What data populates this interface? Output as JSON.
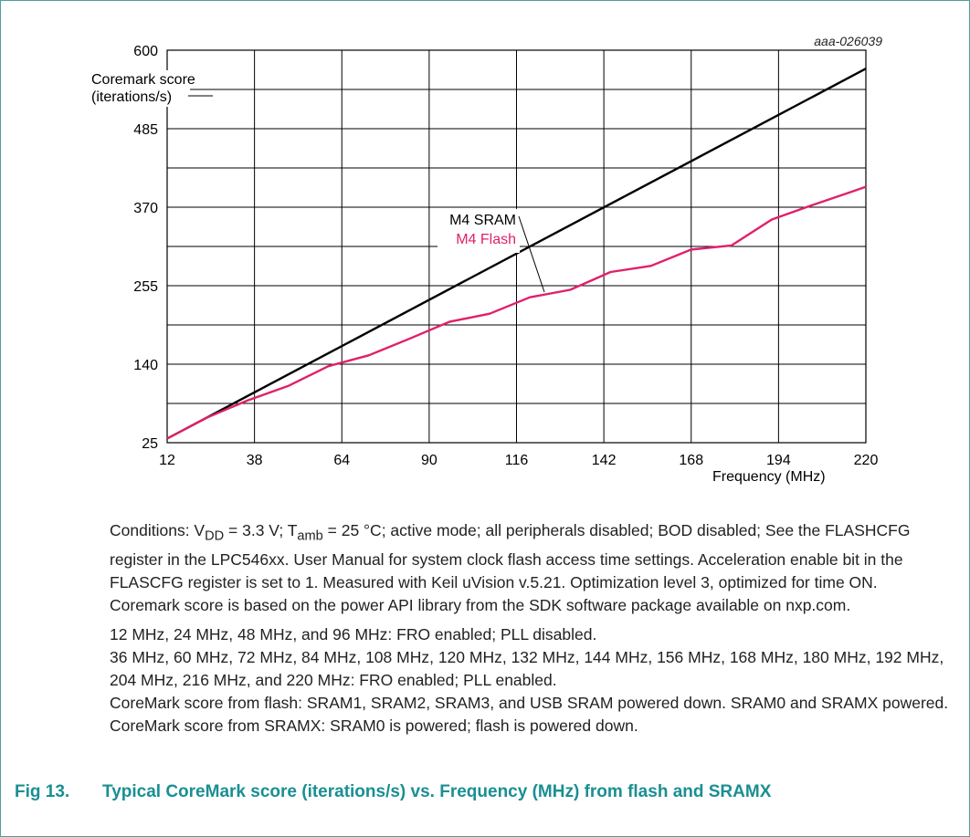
{
  "colors": {
    "frame": "#4d9e9e",
    "sram": "#000000",
    "flash": "#e0206a",
    "caption": "#1a8f93"
  },
  "chart_data": {
    "type": "line",
    "figure_id": "aaa-026039",
    "ylabel_line1": "Coremark score",
    "ylabel_line2": "(iterations/s)",
    "xlabel": "Frequency (MHz)",
    "xlim": [
      12,
      220
    ],
    "ylim": [
      25,
      600
    ],
    "x_ticks": [
      12,
      38,
      64,
      90,
      116,
      142,
      168,
      194,
      220
    ],
    "y_ticks": [
      25,
      140,
      255,
      370,
      485,
      600
    ],
    "grid": true,
    "series": [
      {
        "name": "M4 SRAM",
        "color": "#000000",
        "x": [
          12,
          220
        ],
        "y": [
          31,
          573
        ]
      },
      {
        "name": "M4 Flash",
        "color": "#e0206a",
        "x": [
          12,
          24,
          36,
          48,
          60,
          72,
          84,
          96,
          108,
          120,
          132,
          144,
          156,
          168,
          180,
          192,
          204,
          216,
          220
        ],
        "y": [
          31,
          62,
          87,
          108,
          137,
          153,
          177,
          202,
          214,
          238,
          249,
          275,
          284,
          308,
          314,
          352,
          373,
          393,
          400
        ]
      }
    ]
  },
  "notes": {
    "conditions_part1": "Conditions: V",
    "vdd_sub": "DD",
    "conditions_part2": " = 3.3 V; T",
    "tamb_sub": "amb",
    "conditions_part3": " = 25 °C; active mode; all peripherals disabled; BOD disabled; See the FLASHCFG register in the LPC546xx. User Manual for system clock flash access time settings. Acceleration enable bit in the FLASCFG register is set to 1. Measured with Keil uVision v.5.21. Optimization level 3, optimized for time ON. Coremark score is based on the power API library from the SDK software package available on nxp.com.",
    "line1": "12 MHz, 24 MHz, 48 MHz, and 96 MHz: FRO enabled; PLL disabled.",
    "line2": "36 MHz, 60 MHz, 72 MHz, 84 MHz, 108 MHz, 120 MHz, 132 MHz, 144 MHz, 156 MHz, 168 MHz, 180 MHz, 192 MHz, 204 MHz, 216 MHz, and 220 MHz: FRO enabled; PLL enabled.",
    "line3": "CoreMark score from flash: SRAM1, SRAM2, SRAM3, and USB SRAM powered down. SRAM0 and SRAMX powered.",
    "line4": "CoreMark score from SRAMX: SRAM0 is powered; flash is powered down."
  },
  "caption": {
    "number": "Fig 13.",
    "text": "Typical CoreMark score (iterations/s) vs. Frequency (MHz) from flash and SRAMX"
  }
}
